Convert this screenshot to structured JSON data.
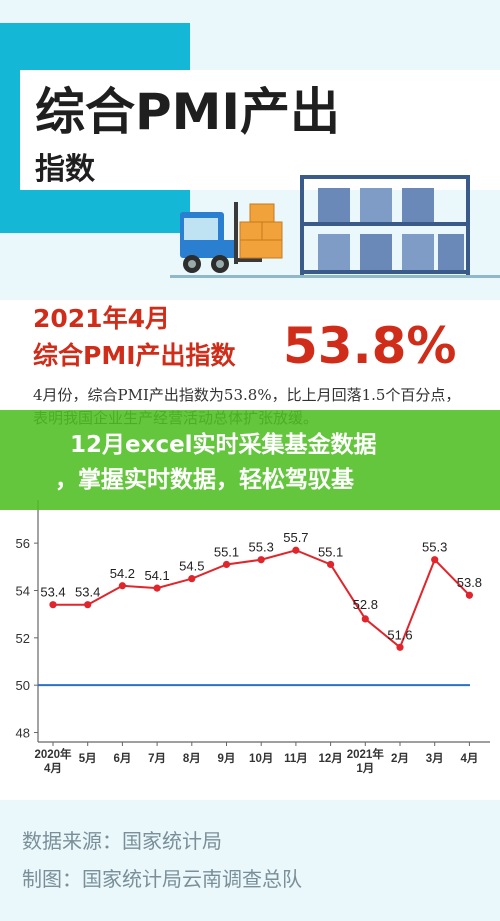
{
  "hero": {
    "title": "综合PMI产出",
    "subtitle": "指数"
  },
  "stat": {
    "line1": "2021年4月",
    "line2": "综合PMI产出指数",
    "value": "53.8%"
  },
  "description": "4月份，综合PMI产出指数为53.8%，比上月回落1.5个百分点，表明我国企业生产经营活动总体扩张放缓。",
  "overlay": {
    "line1": "12月excel实时采集基金数据",
    "line2": "，掌握实时数据，轻松驾驭基"
  },
  "chart_data": {
    "type": "line",
    "categories": [
      "2020年4月",
      "5月",
      "6月",
      "7月",
      "8月",
      "9月",
      "10月",
      "11月",
      "12月",
      "2021年1月",
      "2月",
      "3月",
      "4月"
    ],
    "category_lines": [
      [
        "2020年",
        "4月"
      ],
      [
        "5月"
      ],
      [
        "6月"
      ],
      [
        "7月"
      ],
      [
        "8月"
      ],
      [
        "9月"
      ],
      [
        "10月"
      ],
      [
        "11月"
      ],
      [
        "12月"
      ],
      [
        "2021年",
        "1月"
      ],
      [
        "2月"
      ],
      [
        "3月"
      ],
      [
        "4月"
      ]
    ],
    "series": [
      {
        "values": [
          53.4,
          53.4,
          54.2,
          54.1,
          54.5,
          55.1,
          55.3,
          55.7,
          55.1,
          52.8,
          51.6,
          55.3,
          53.8
        ],
        "color": "#e0262c"
      }
    ],
    "reference_line": {
      "value": 50,
      "color": "#2a6fc8"
    },
    "yticks": [
      48,
      50,
      52,
      54,
      56
    ],
    "ylim": [
      47.6,
      57.4
    ],
    "grid": false
  },
  "footer": {
    "source": "数据来源：国家统计局",
    "producer": "制图：国家统计局云南调查总队"
  },
  "colors": {
    "brand_cyan": "#14b8d6",
    "accent_red": "#cf2d19",
    "overlay_green": "#4dbe21"
  }
}
